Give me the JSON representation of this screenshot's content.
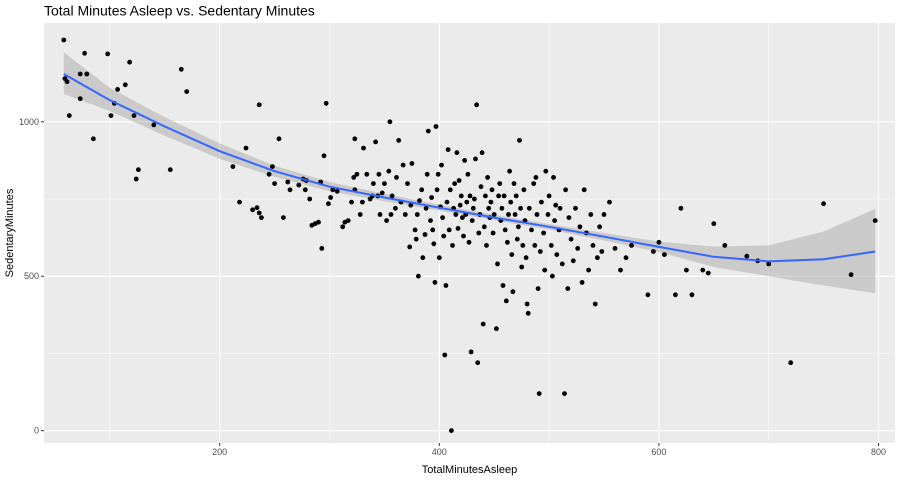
{
  "chart_data": {
    "type": "scatter",
    "title": "Total Minutes Asleep vs. Sedentary Minutes",
    "xlabel": "TotalMinutesAsleep",
    "ylabel": "SedentaryMinutes",
    "xlim": [
      40,
      815
    ],
    "ylim": [
      -40,
      1320
    ],
    "x_ticks": [
      200,
      400,
      600,
      800
    ],
    "y_ticks": [
      0,
      500,
      1000
    ],
    "grid": true,
    "colors": {
      "panel": "#ebebeb",
      "grid_major": "#ffffff",
      "point": "#000000",
      "smooth_line": "#3366ff",
      "ribbon": "#999999"
    },
    "smooth": {
      "method": "loess",
      "fit": [
        [
          58,
          1155
        ],
        [
          100,
          1070
        ],
        [
          150,
          985
        ],
        [
          200,
          905
        ],
        [
          250,
          840
        ],
        [
          300,
          790
        ],
        [
          350,
          755
        ],
        [
          400,
          722
        ],
        [
          450,
          690
        ],
        [
          500,
          660
        ],
        [
          550,
          628
        ],
        [
          600,
          595
        ],
        [
          650,
          563
        ],
        [
          700,
          548
        ],
        [
          750,
          555
        ],
        [
          797,
          580
        ]
      ],
      "lower": [
        [
          58,
          1090
        ],
        [
          100,
          1035
        ],
        [
          150,
          955
        ],
        [
          200,
          880
        ],
        [
          250,
          822
        ],
        [
          300,
          775
        ],
        [
          350,
          743
        ],
        [
          400,
          712
        ],
        [
          450,
          681
        ],
        [
          500,
          651
        ],
        [
          550,
          616
        ],
        [
          600,
          578
        ],
        [
          650,
          530
        ],
        [
          700,
          500
        ],
        [
          750,
          470
        ],
        [
          797,
          445
        ]
      ],
      "upper": [
        [
          58,
          1225
        ],
        [
          100,
          1110
        ],
        [
          150,
          1015
        ],
        [
          200,
          930
        ],
        [
          250,
          858
        ],
        [
          300,
          805
        ],
        [
          350,
          767
        ],
        [
          400,
          732
        ],
        [
          450,
          699
        ],
        [
          500,
          669
        ],
        [
          550,
          640
        ],
        [
          600,
          612
        ],
        [
          650,
          596
        ],
        [
          700,
          600
        ],
        [
          750,
          645
        ],
        [
          797,
          718
        ]
      ]
    },
    "points": [
      [
        58,
        1265
      ],
      [
        59,
        1140
      ],
      [
        61,
        1130
      ],
      [
        63,
        1020
      ],
      [
        73,
        1155
      ],
      [
        73,
        1075
      ],
      [
        77,
        1222
      ],
      [
        79,
        1155
      ],
      [
        85,
        945
      ],
      [
        98,
        1220
      ],
      [
        101,
        1020
      ],
      [
        104,
        1060
      ],
      [
        107,
        1105
      ],
      [
        114,
        1120
      ],
      [
        118,
        1193
      ],
      [
        122,
        1020
      ],
      [
        124,
        815
      ],
      [
        126,
        845
      ],
      [
        140,
        990
      ],
      [
        155,
        845
      ],
      [
        165,
        1170
      ],
      [
        170,
        1098
      ],
      [
        212,
        855
      ],
      [
        218,
        740
      ],
      [
        224,
        915
      ],
      [
        230,
        715
      ],
      [
        234,
        722
      ],
      [
        236,
        1055
      ],
      [
        236,
        705
      ],
      [
        238,
        690
      ],
      [
        245,
        830
      ],
      [
        248,
        855
      ],
      [
        250,
        800
      ],
      [
        254,
        945
      ],
      [
        258,
        690
      ],
      [
        262,
        805
      ],
      [
        264,
        780
      ],
      [
        272,
        795
      ],
      [
        276,
        815
      ],
      [
        278,
        780
      ],
      [
        279,
        810
      ],
      [
        282,
        750
      ],
      [
        284,
        665
      ],
      [
        287,
        670
      ],
      [
        290,
        675
      ],
      [
        292,
        805
      ],
      [
        293,
        590
      ],
      [
        295,
        890
      ],
      [
        297,
        1060
      ],
      [
        299,
        735
      ],
      [
        301,
        755
      ],
      [
        303,
        780
      ],
      [
        307,
        775
      ],
      [
        312,
        660
      ],
      [
        314,
        675
      ],
      [
        317,
        680
      ],
      [
        320,
        740
      ],
      [
        322,
        820
      ],
      [
        323,
        945
      ],
      [
        323,
        780
      ],
      [
        325,
        830
      ],
      [
        328,
        700
      ],
      [
        330,
        740
      ],
      [
        331,
        915
      ],
      [
        334,
        830
      ],
      [
        337,
        750
      ],
      [
        339,
        760
      ],
      [
        340,
        800
      ],
      [
        342,
        935
      ],
      [
        344,
        760
      ],
      [
        345,
        830
      ],
      [
        346,
        700
      ],
      [
        348,
        770
      ],
      [
        350,
        800
      ],
      [
        352,
        680
      ],
      [
        354,
        840
      ],
      [
        355,
        1000
      ],
      [
        356,
        700
      ],
      [
        357,
        760
      ],
      [
        360,
        720
      ],
      [
        361,
        820
      ],
      [
        363,
        940
      ],
      [
        365,
        740
      ],
      [
        367,
        860
      ],
      [
        369,
        700
      ],
      [
        371,
        800
      ],
      [
        373,
        595
      ],
      [
        374,
        730
      ],
      [
        375,
        865
      ],
      [
        378,
        650
      ],
      [
        379,
        620
      ],
      [
        380,
        700
      ],
      [
        381,
        500
      ],
      [
        382,
        745
      ],
      [
        384,
        780
      ],
      [
        385,
        560
      ],
      [
        387,
        635
      ],
      [
        388,
        720
      ],
      [
        389,
        830
      ],
      [
        390,
        970
      ],
      [
        392,
        680
      ],
      [
        393,
        755
      ],
      [
        394,
        650
      ],
      [
        395,
        605
      ],
      [
        396,
        480
      ],
      [
        397,
        985
      ],
      [
        398,
        780
      ],
      [
        399,
        830
      ],
      [
        400,
        560
      ],
      [
        401,
        725
      ],
      [
        402,
        860
      ],
      [
        403,
        690
      ],
      [
        404,
        630
      ],
      [
        405,
        245
      ],
      [
        406,
        470
      ],
      [
        407,
        740
      ],
      [
        408,
        910
      ],
      [
        409,
        650
      ],
      [
        410,
        780
      ],
      [
        411,
        0
      ],
      [
        412,
        600
      ],
      [
        413,
        720
      ],
      [
        414,
        800
      ],
      [
        415,
        700
      ],
      [
        416,
        900
      ],
      [
        417,
        655
      ],
      [
        418,
        810
      ],
      [
        419,
        730
      ],
      [
        420,
        760
      ],
      [
        421,
        690
      ],
      [
        422,
        630
      ],
      [
        423,
        875
      ],
      [
        424,
        700
      ],
      [
        425,
        740
      ],
      [
        426,
        830
      ],
      [
        427,
        610
      ],
      [
        428,
        760
      ],
      [
        429,
        255
      ],
      [
        430,
        680
      ],
      [
        431,
        720
      ],
      [
        432,
        750
      ],
      [
        433,
        880
      ],
      [
        434,
        1055
      ],
      [
        435,
        220
      ],
      [
        436,
        640
      ],
      [
        437,
        700
      ],
      [
        438,
        790
      ],
      [
        439,
        900
      ],
      [
        440,
        345
      ],
      [
        441,
        660
      ],
      [
        442,
        760
      ],
      [
        443,
        600
      ],
      [
        444,
        820
      ],
      [
        445,
        720
      ],
      [
        446,
        690
      ],
      [
        447,
        740
      ],
      [
        448,
        780
      ],
      [
        449,
        640
      ],
      [
        450,
        700
      ],
      [
        452,
        330
      ],
      [
        453,
        540
      ],
      [
        454,
        760
      ],
      [
        455,
        800
      ],
      [
        456,
        680
      ],
      [
        457,
        720
      ],
      [
        458,
        470
      ],
      [
        459,
        760
      ],
      [
        460,
        650
      ],
      [
        461,
        420
      ],
      [
        462,
        610
      ],
      [
        463,
        700
      ],
      [
        464,
        840
      ],
      [
        465,
        740
      ],
      [
        466,
        570
      ],
      [
        467,
        450
      ],
      [
        468,
        800
      ],
      [
        469,
        700
      ],
      [
        470,
        760
      ],
      [
        471,
        620
      ],
      [
        472,
        660
      ],
      [
        473,
        940
      ],
      [
        474,
        720
      ],
      [
        475,
        530
      ],
      [
        476,
        600
      ],
      [
        477,
        780
      ],
      [
        478,
        680
      ],
      [
        479,
        560
      ],
      [
        480,
        410
      ],
      [
        481,
        380
      ],
      [
        482,
        720
      ],
      [
        484,
        650
      ],
      [
        486,
        800
      ],
      [
        487,
        600
      ],
      [
        488,
        820
      ],
      [
        489,
        700
      ],
      [
        490,
        460
      ],
      [
        491,
        120
      ],
      [
        492,
        580
      ],
      [
        493,
        740
      ],
      [
        495,
        640
      ],
      [
        496,
        520
      ],
      [
        497,
        840
      ],
      [
        499,
        700
      ],
      [
        500,
        760
      ],
      [
        502,
        600
      ],
      [
        503,
        500
      ],
      [
        504,
        820
      ],
      [
        505,
        680
      ],
      [
        506,
        730
      ],
      [
        507,
        570
      ],
      [
        509,
        650
      ],
      [
        510,
        720
      ],
      [
        512,
        540
      ],
      [
        514,
        120
      ],
      [
        515,
        780
      ],
      [
        517,
        460
      ],
      [
        518,
        690
      ],
      [
        520,
        620
      ],
      [
        522,
        550
      ],
      [
        524,
        720
      ],
      [
        526,
        590
      ],
      [
        528,
        660
      ],
      [
        530,
        480
      ],
      [
        532,
        780
      ],
      [
        534,
        640
      ],
      [
        536,
        520
      ],
      [
        538,
        700
      ],
      [
        540,
        600
      ],
      [
        542,
        410
      ],
      [
        544,
        560
      ],
      [
        546,
        660
      ],
      [
        548,
        580
      ],
      [
        550,
        700
      ],
      [
        555,
        740
      ],
      [
        560,
        590
      ],
      [
        565,
        520
      ],
      [
        570,
        560
      ],
      [
        575,
        600
      ],
      [
        590,
        440
      ],
      [
        595,
        580
      ],
      [
        600,
        610
      ],
      [
        605,
        570
      ],
      [
        615,
        440
      ],
      [
        620,
        720
      ],
      [
        625,
        520
      ],
      [
        630,
        440
      ],
      [
        640,
        520
      ],
      [
        645,
        510
      ],
      [
        650,
        670
      ],
      [
        660,
        600
      ],
      [
        680,
        565
      ],
      [
        690,
        550
      ],
      [
        700,
        540
      ],
      [
        720,
        220
      ],
      [
        750,
        735
      ],
      [
        775,
        505
      ],
      [
        797,
        680
      ]
    ]
  }
}
